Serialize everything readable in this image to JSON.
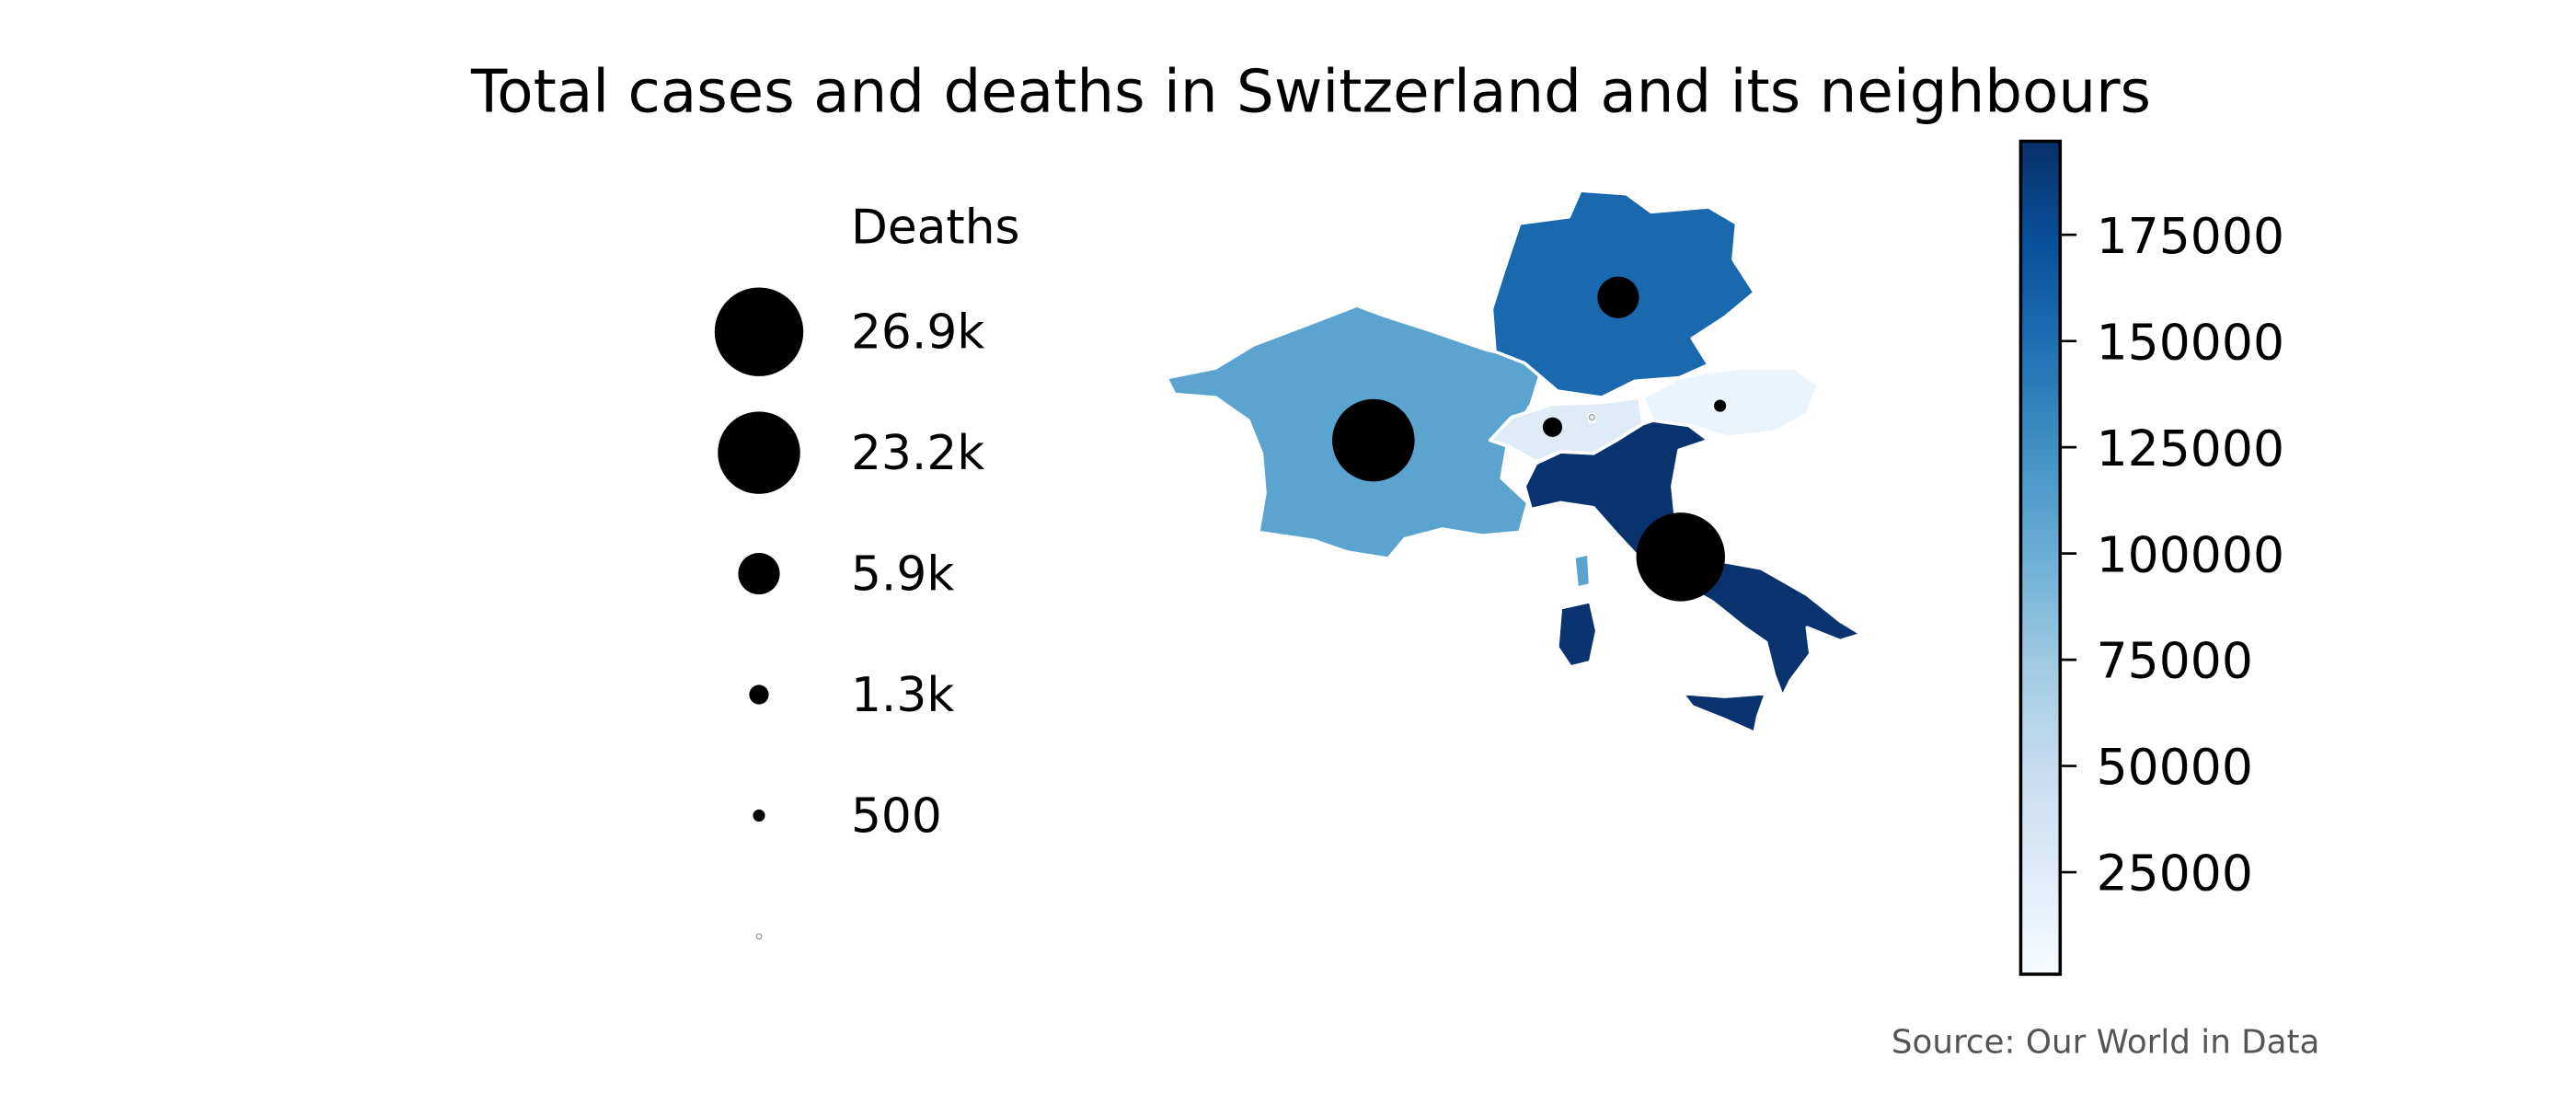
{
  "title": "Total cases and deaths in Switzerland and its neighbours",
  "source": "Source: Our World in Data",
  "legend": {
    "title": "Deaths",
    "entries": [
      {
        "label": "26.9k",
        "value": 26900
      },
      {
        "label": "23.2k",
        "value": 23200
      },
      {
        "label": "5.9k",
        "value": 5900
      },
      {
        "label": "1.3k",
        "value": 1300
      },
      {
        "label": "500",
        "value": 500
      },
      {
        "label": "",
        "value": 5
      }
    ]
  },
  "colorbar": {
    "colormap": "Blues",
    "range": [
      1000,
      197000
    ],
    "ticks": [
      "175000",
      "150000",
      "125000",
      "100000",
      "75000",
      "50000",
      "25000"
    ],
    "tick_values": [
      175000,
      150000,
      125000,
      100000,
      75000,
      50000,
      25000
    ]
  },
  "chart_data": {
    "type": "choropleth-bubble-map",
    "title": "Total cases and deaths in Switzerland and its neighbours",
    "color_metric": "total cases",
    "size_metric": "Deaths",
    "regions": [
      {
        "id": "france",
        "cases": 108000,
        "deaths": 23200
      },
      {
        "id": "germany",
        "cases": 155000,
        "deaths": 5900
      },
      {
        "id": "switzerland",
        "cases": 25000,
        "deaths": 1300
      },
      {
        "id": "austria",
        "cases": 12000,
        "deaths": 500
      },
      {
        "id": "italy",
        "cases": 195000,
        "deaths": 26900
      },
      {
        "id": "liechtenstein",
        "cases": 80,
        "deaths": 1
      }
    ]
  }
}
